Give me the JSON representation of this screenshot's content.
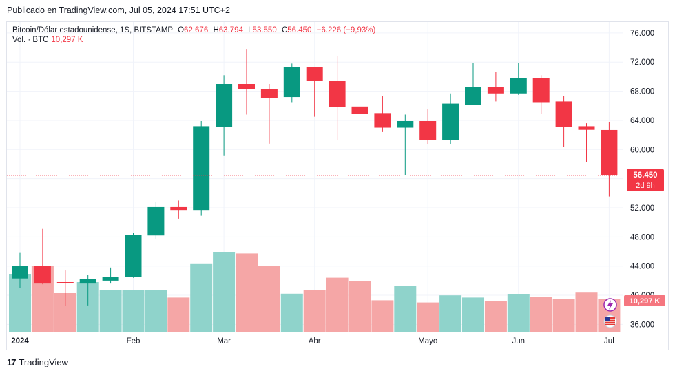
{
  "header": {
    "published": "Publicado en TradingView.com, Jul 05, 2024 17:51 UTC+2"
  },
  "legend": {
    "symbol": "Bitcoin/Dólar estadounidense, 1S, BITSTAMP",
    "o_label": "O",
    "o_value": "62.676",
    "h_label": "H",
    "h_value": "63.794",
    "l_label": "L",
    "l_value": "53.550",
    "c_label": "C",
    "c_value": "56.450",
    "change": "−6.226 (−9,93%)",
    "vol_label": "Vol. · BTC",
    "vol_value": "10,297 K"
  },
  "price_tag": {
    "price": "56.450",
    "countdown": "2d 9h"
  },
  "volume_tag": "10,297 K",
  "footer": {
    "brand": "TradingView",
    "logo": "17"
  },
  "colors": {
    "up": "#089981",
    "down": "#f23645",
    "vol_up": "#8fd3cb",
    "vol_down": "#f5a6a6"
  },
  "chart_data": {
    "type": "candlestick",
    "title": "Bitcoin/Dólar estadounidense, 1S, BITSTAMP",
    "y_ticks": [
      "36.000",
      "40.000",
      "44.000",
      "48.000",
      "52.000",
      "56.000",
      "60.000",
      "64.000",
      "68.000",
      "72.000",
      "76.000"
    ],
    "y_tick_values": [
      36000,
      40000,
      44000,
      48000,
      52000,
      56000,
      60000,
      64000,
      68000,
      72000,
      76000
    ],
    "ylim": [
      35000,
      77500
    ],
    "x_labels": [
      {
        "label": "2024",
        "index": 0
      },
      {
        "label": "Feb",
        "index": 5
      },
      {
        "label": "Mar",
        "index": 9
      },
      {
        "label": "Abr",
        "index": 13
      },
      {
        "label": "Mayo",
        "index": 18
      },
      {
        "label": "Jun",
        "index": 22
      },
      {
        "label": "Jul",
        "index": 26
      }
    ],
    "candles": [
      {
        "o": 42300,
        "h": 45900,
        "l": 41000,
        "c": 44000,
        "v": 10.5
      },
      {
        "o": 44000,
        "h": 49100,
        "l": 41500,
        "c": 41600,
        "v": 12.0
      },
      {
        "o": 41800,
        "h": 43400,
        "l": 38500,
        "c": 41700,
        "v": 7.0
      },
      {
        "o": 41600,
        "h": 42800,
        "l": 38600,
        "c": 42200,
        "v": 9.0
      },
      {
        "o": 42000,
        "h": 43800,
        "l": 41600,
        "c": 42500,
        "v": 7.5
      },
      {
        "o": 42500,
        "h": 48600,
        "l": 42400,
        "c": 48300,
        "v": 7.6
      },
      {
        "o": 48200,
        "h": 52800,
        "l": 47700,
        "c": 52100,
        "v": 7.6
      },
      {
        "o": 52100,
        "h": 53000,
        "l": 50500,
        "c": 51700,
        "v": 6.2
      },
      {
        "o": 51700,
        "h": 63900,
        "l": 50900,
        "c": 63200,
        "v": 12.4
      },
      {
        "o": 63100,
        "h": 70200,
        "l": 59200,
        "c": 69000,
        "v": 14.5
      },
      {
        "o": 69000,
        "h": 73800,
        "l": 64800,
        "c": 68300,
        "v": 14.2
      },
      {
        "o": 68300,
        "h": 69000,
        "l": 60800,
        "c": 67100,
        "v": 12.0
      },
      {
        "o": 67200,
        "h": 71800,
        "l": 66500,
        "c": 71300,
        "v": 6.9
      },
      {
        "o": 71300,
        "h": 71300,
        "l": 64500,
        "c": 69400,
        "v": 7.5
      },
      {
        "o": 69400,
        "h": 72800,
        "l": 61300,
        "c": 65800,
        "v": 9.8
      },
      {
        "o": 65900,
        "h": 67000,
        "l": 59500,
        "c": 64900,
        "v": 9.2
      },
      {
        "o": 65000,
        "h": 67300,
        "l": 62400,
        "c": 63000,
        "v": 5.7
      },
      {
        "o": 63000,
        "h": 64800,
        "l": 56500,
        "c": 63900,
        "v": 8.3
      },
      {
        "o": 63900,
        "h": 65500,
        "l": 60700,
        "c": 61300,
        "v": 5.3
      },
      {
        "o": 61300,
        "h": 67700,
        "l": 60700,
        "c": 66300,
        "v": 6.6
      },
      {
        "o": 66100,
        "h": 71900,
        "l": 66100,
        "c": 68600,
        "v": 6.2
      },
      {
        "o": 68600,
        "h": 70700,
        "l": 66600,
        "c": 67700,
        "v": 5.5
      },
      {
        "o": 67700,
        "h": 71900,
        "l": 67500,
        "c": 69800,
        "v": 6.8
      },
      {
        "o": 69800,
        "h": 70200,
        "l": 64900,
        "c": 66500,
        "v": 6.3
      },
      {
        "o": 66600,
        "h": 67300,
        "l": 60400,
        "c": 63100,
        "v": 6.0
      },
      {
        "o": 63200,
        "h": 63600,
        "l": 58300,
        "c": 62700,
        "v": 7.1
      },
      {
        "o": 62676,
        "h": 63794,
        "l": 53550,
        "c": 56450,
        "v": 5.9
      }
    ]
  }
}
